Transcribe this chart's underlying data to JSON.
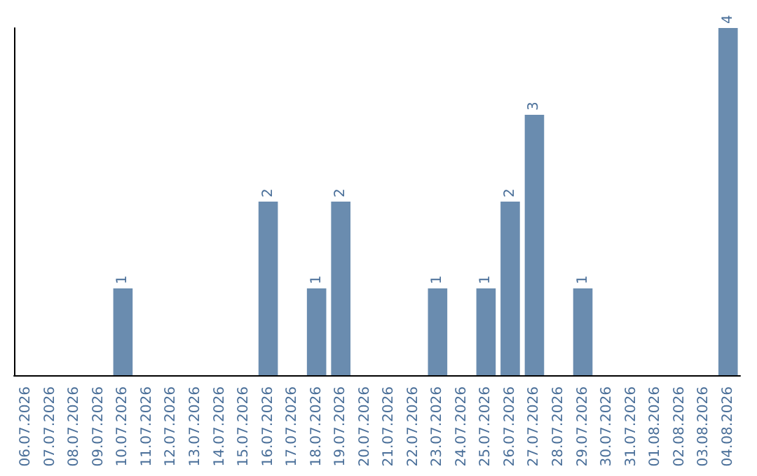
{
  "chart_data": {
    "type": "bar",
    "categories": [
      "06.07.2026",
      "07.07.2026",
      "08.07.2026",
      "09.07.2026",
      "10.07.2026",
      "11.07.2026",
      "12.07.2026",
      "13.07.2026",
      "14.07.2026",
      "15.07.2026",
      "16.07.2026",
      "17.07.2026",
      "18.07.2026",
      "19.07.2026",
      "20.07.2026",
      "21.07.2026",
      "22.07.2026",
      "23.07.2026",
      "24.07.2026",
      "25.07.2026",
      "26.07.2026",
      "27.07.2026",
      "28.07.2026",
      "29.07.2026",
      "30.07.2026",
      "31.07.2026",
      "01.08.2026",
      "02.08.2026",
      "03.08.2026",
      "04.08.2026"
    ],
    "values": [
      0,
      0,
      0,
      0,
      1,
      0,
      0,
      0,
      0,
      0,
      2,
      0,
      1,
      2,
      0,
      0,
      0,
      1,
      0,
      1,
      2,
      3,
      0,
      1,
      0,
      0,
      0,
      0,
      0,
      4
    ],
    "value_labels": [
      null,
      null,
      null,
      null,
      "1",
      null,
      null,
      null,
      null,
      null,
      "2",
      null,
      "1",
      "2",
      null,
      null,
      null,
      "1",
      null,
      "1",
      "2",
      "3",
      null,
      "1",
      null,
      null,
      null,
      null,
      null,
      "4"
    ],
    "color": "#6a8caf",
    "grid": false
  }
}
